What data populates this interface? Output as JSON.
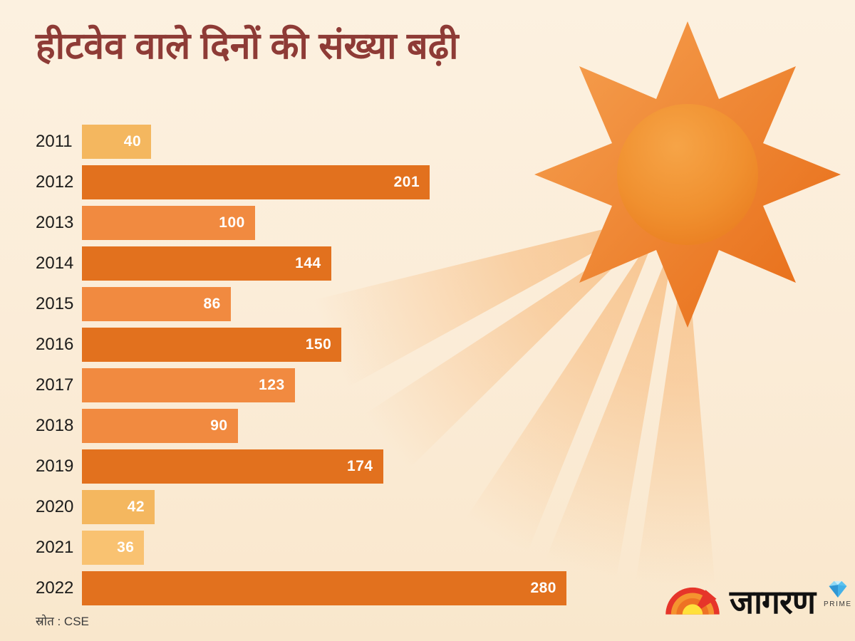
{
  "title": "हीटवेव वाले दिनों की संख्या बढ़ी",
  "source": "स्रोत : CSE",
  "chart_data": {
    "type": "bar",
    "orientation": "horizontal",
    "title": "हीटवेव वाले दिनों की संख्या बढ़ी",
    "categories": [
      "2011",
      "2012",
      "2013",
      "2014",
      "2015",
      "2016",
      "2017",
      "2018",
      "2019",
      "2020",
      "2021",
      "2022"
    ],
    "values": [
      40,
      201,
      100,
      144,
      86,
      150,
      123,
      90,
      174,
      42,
      36,
      280
    ],
    "bar_colors": [
      "#F4B75F",
      "#E2711E",
      "#F18A40",
      "#E2711E",
      "#F18A40",
      "#E2711E",
      "#F18A40",
      "#F18A40",
      "#E2711E",
      "#F4B75F",
      "#F9C271",
      "#E2711E"
    ],
    "xlim": [
      0,
      280
    ],
    "value_labels_shown": true,
    "grid": false,
    "legend": false,
    "source": "स्रोत : CSE"
  },
  "logo": {
    "wordmark": "जागरण",
    "prime_label": "PRIME"
  },
  "colors": {
    "background_top": "#FCF1E0",
    "background_bottom": "#F9E7CC",
    "title_text": "#8E3B36",
    "year_label": "#1C1C1B",
    "value_label": "#FFFFFF",
    "source_text": "#3B3B3B",
    "bar_dark": "#E2711E",
    "bar_medium": "#F18A40",
    "bar_light": "#F4B75F",
    "bar_lightest": "#F9C271",
    "beam": "#F5A04C",
    "sun_star_light": "#F59E4E",
    "sun_star_dark": "#E86F1A",
    "sun_core_light": "#F6A447",
    "sun_core_dark": "#E97C1F",
    "wordmark_text": "#111111",
    "prime_text": "#3C3C3C",
    "prime_diamond": "#45B1E8",
    "logo_red": "#E6352A",
    "logo_orange": "#F5942F",
    "logo_deep_orange": "#EE7224",
    "logo_yellow": "#FFE13C"
  }
}
